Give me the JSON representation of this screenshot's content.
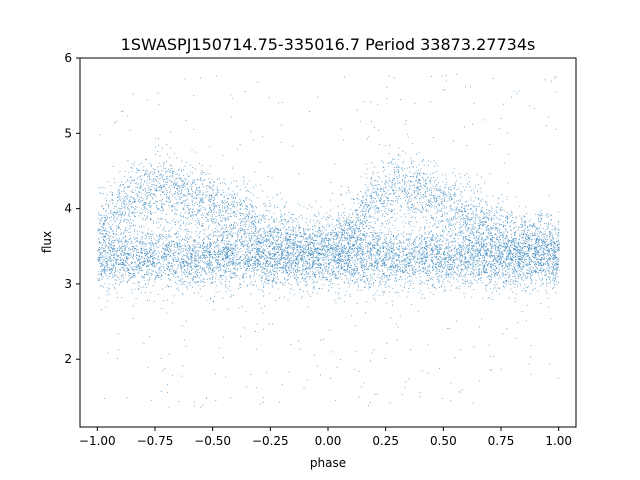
{
  "chart_data": {
    "type": "scatter",
    "title": "1SWASPJ150714.75-335016.7 Period 33873.27734s",
    "xlabel": "phase",
    "ylabel": "flux",
    "xlim": [
      -1.075,
      1.075
    ],
    "ylim": [
      1.1,
      6.0
    ],
    "xticks": [
      -1.0,
      -0.75,
      -0.5,
      -0.25,
      0.0,
      0.25,
      0.5,
      0.75,
      1.0
    ],
    "xtick_labels": [
      "−1.00",
      "−0.75",
      "−0.50",
      "−0.25",
      "0.00",
      "0.25",
      "0.50",
      "0.75",
      "1.00"
    ],
    "yticks": [
      2,
      3,
      4,
      5,
      6
    ],
    "ytick_labels": [
      "2",
      "3",
      "4",
      "5",
      "6"
    ],
    "grid": false,
    "marker_color": "#1f77b4",
    "series": [
      {
        "phase_range": [
          -1.0,
          1.0
        ],
        "baseline_flux": 3.35,
        "baseline_spread": 0.2,
        "upper_branch": [
          {
            "x": -0.98,
            "y": 3.75
          },
          {
            "x": -0.85,
            "y": 4.15
          },
          {
            "x": -0.7,
            "y": 4.3
          },
          {
            "x": -0.55,
            "y": 4.15
          },
          {
            "x": -0.4,
            "y": 3.9
          },
          {
            "x": -0.2,
            "y": 3.6
          },
          {
            "x": 0.0,
            "y": 3.5
          },
          {
            "x": 0.1,
            "y": 3.7
          },
          {
            "x": 0.2,
            "y": 4.15
          },
          {
            "x": 0.3,
            "y": 4.3
          },
          {
            "x": 0.45,
            "y": 4.15
          },
          {
            "x": 0.6,
            "y": 3.9
          },
          {
            "x": 0.8,
            "y": 3.6
          },
          {
            "x": 1.0,
            "y": 3.5
          }
        ],
        "upper_spread": 0.22,
        "outlier_range": [
          1.3,
          5.8
        ]
      }
    ]
  }
}
